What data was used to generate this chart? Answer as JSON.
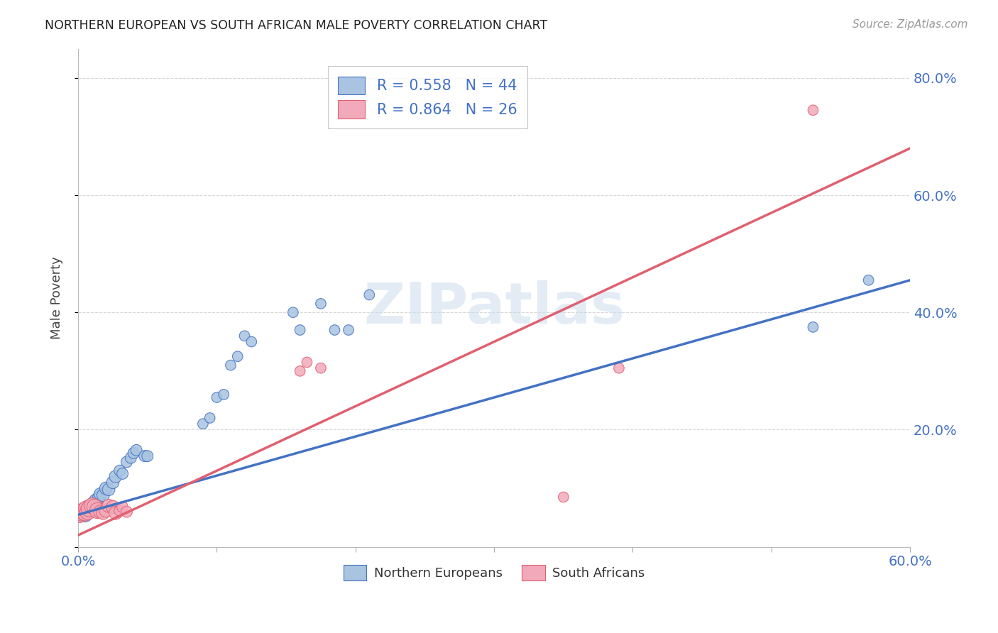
{
  "title": "NORTHERN EUROPEAN VS SOUTH AFRICAN MALE POVERTY CORRELATION CHART",
  "source": "Source: ZipAtlas.com",
  "ylabel": "Male Poverty",
  "xlim": [
    0.0,
    0.6
  ],
  "ylim": [
    0.0,
    0.85
  ],
  "blue_color": "#A8C4E0",
  "pink_color": "#F2AABB",
  "blue_line_color": "#4472C4",
  "pink_line_color": "#E06070",
  "legend_text_color": "#4472C4",
  "watermark": "ZIPatlas",
  "legend_R_blue": "0.558",
  "legend_N_blue": "44",
  "legend_R_pink": "0.864",
  "legend_N_pink": "26",
  "blue_points": [
    [
      0.001,
      0.055
    ],
    [
      0.002,
      0.06
    ],
    [
      0.003,
      0.058
    ],
    [
      0.004,
      0.062
    ],
    [
      0.005,
      0.055
    ],
    [
      0.006,
      0.065
    ],
    [
      0.007,
      0.06
    ],
    [
      0.008,
      0.068
    ],
    [
      0.009,
      0.063
    ],
    [
      0.01,
      0.07
    ],
    [
      0.011,
      0.072
    ],
    [
      0.012,
      0.068
    ],
    [
      0.013,
      0.078
    ],
    [
      0.015,
      0.085
    ],
    [
      0.016,
      0.09
    ],
    [
      0.018,
      0.088
    ],
    [
      0.02,
      0.1
    ],
    [
      0.022,
      0.098
    ],
    [
      0.025,
      0.11
    ],
    [
      0.027,
      0.12
    ],
    [
      0.03,
      0.13
    ],
    [
      0.032,
      0.125
    ],
    [
      0.035,
      0.145
    ],
    [
      0.038,
      0.152
    ],
    [
      0.04,
      0.16
    ],
    [
      0.042,
      0.165
    ],
    [
      0.048,
      0.155
    ],
    [
      0.05,
      0.155
    ],
    [
      0.09,
      0.21
    ],
    [
      0.095,
      0.22
    ],
    [
      0.1,
      0.255
    ],
    [
      0.105,
      0.26
    ],
    [
      0.11,
      0.31
    ],
    [
      0.115,
      0.325
    ],
    [
      0.12,
      0.36
    ],
    [
      0.125,
      0.35
    ],
    [
      0.155,
      0.4
    ],
    [
      0.16,
      0.37
    ],
    [
      0.175,
      0.415
    ],
    [
      0.185,
      0.37
    ],
    [
      0.195,
      0.37
    ],
    [
      0.21,
      0.43
    ],
    [
      0.53,
      0.375
    ],
    [
      0.57,
      0.455
    ]
  ],
  "pink_points": [
    [
      0.001,
      0.055
    ],
    [
      0.002,
      0.058
    ],
    [
      0.003,
      0.06
    ],
    [
      0.004,
      0.062
    ],
    [
      0.005,
      0.058
    ],
    [
      0.006,
      0.065
    ],
    [
      0.007,
      0.06
    ],
    [
      0.008,
      0.065
    ],
    [
      0.01,
      0.07
    ],
    [
      0.012,
      0.068
    ],
    [
      0.014,
      0.062
    ],
    [
      0.016,
      0.06
    ],
    [
      0.018,
      0.058
    ],
    [
      0.02,
      0.062
    ],
    [
      0.022,
      0.07
    ],
    [
      0.025,
      0.068
    ],
    [
      0.027,
      0.058
    ],
    [
      0.03,
      0.062
    ],
    [
      0.032,
      0.068
    ],
    [
      0.035,
      0.06
    ],
    [
      0.16,
      0.3
    ],
    [
      0.165,
      0.315
    ],
    [
      0.175,
      0.305
    ],
    [
      0.39,
      0.305
    ],
    [
      0.53,
      0.745
    ],
    [
      0.35,
      0.085
    ]
  ],
  "blue_line_x": [
    0.0,
    0.6
  ],
  "blue_line_y": [
    0.055,
    0.455
  ],
  "pink_line_x": [
    0.0,
    0.6
  ],
  "pink_line_y": [
    0.02,
    0.68
  ]
}
